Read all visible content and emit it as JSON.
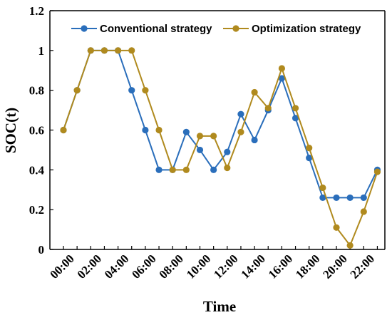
{
  "chart_data": {
    "type": "line",
    "title": "",
    "xlabel": "Time",
    "ylabel": "SOC(t)",
    "ylim": [
      0,
      1.2
    ],
    "yticks": [
      "0",
      "0.2",
      "0.4",
      "0.6",
      "0.8",
      "1",
      "1.2"
    ],
    "xticks": [
      "00:00",
      "02:00",
      "04:00",
      "06:00",
      "08:00",
      "10:00",
      "12:00",
      "14:00",
      "16:00",
      "18:00",
      "20:00",
      "22:00"
    ],
    "x": [
      0,
      1,
      2,
      3,
      4,
      5,
      6,
      7,
      8,
      9,
      10,
      11,
      12,
      13,
      14,
      15,
      16,
      17,
      18,
      19,
      20,
      21,
      22,
      23
    ],
    "grid": false,
    "legend_position": "top",
    "series": [
      {
        "name": "Conventional strategy",
        "color": "#2a6ebb",
        "values": [
          0.6,
          0.8,
          1.0,
          1.0,
          1.0,
          0.8,
          0.6,
          0.4,
          0.4,
          0.59,
          0.5,
          0.4,
          0.49,
          0.68,
          0.55,
          0.7,
          0.86,
          0.66,
          0.46,
          0.26,
          0.26,
          0.26,
          0.26,
          0.4
        ]
      },
      {
        "name": "Optimization strategy",
        "color": "#b08a1e",
        "values": [
          0.6,
          0.8,
          1.0,
          1.0,
          1.0,
          1.0,
          0.8,
          0.6,
          0.4,
          0.4,
          0.57,
          0.57,
          0.41,
          0.59,
          0.79,
          0.71,
          0.91,
          0.71,
          0.51,
          0.31,
          0.11,
          0.02,
          0.19,
          0.39
        ]
      }
    ]
  }
}
